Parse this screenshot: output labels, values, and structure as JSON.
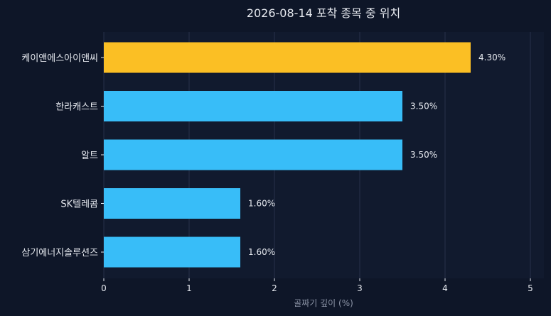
{
  "chart_data": {
    "type": "bar",
    "orientation": "horizontal",
    "title": "2026-08-14 포착 종목 중 위치",
    "xlabel": "골짜기 깊이 (%)",
    "ylabel": "",
    "xlim": [
      0,
      5.2
    ],
    "xticks": [
      "0",
      "1",
      "2",
      "3",
      "4",
      "5"
    ],
    "grid": "vertical",
    "categories": [
      "케이앤에스아이앤씨",
      "한라캐스트",
      "알트",
      "SK텔레콤",
      "삼기에너지솔루션즈"
    ],
    "values": [
      4.3,
      3.5,
      3.5,
      1.6,
      1.6
    ],
    "value_labels": [
      "4.30%",
      "3.50%",
      "3.50%",
      "1.60%",
      "1.60%"
    ],
    "highlight_index": 0,
    "colors": {
      "highlight": "#fbbf24",
      "bar": "#38bdf8",
      "background": "#0e1628",
      "plot_background": "#111a2e",
      "grid": "#26304a",
      "text": "#e6e9ef",
      "axis_label": "#8b93a5"
    }
  }
}
